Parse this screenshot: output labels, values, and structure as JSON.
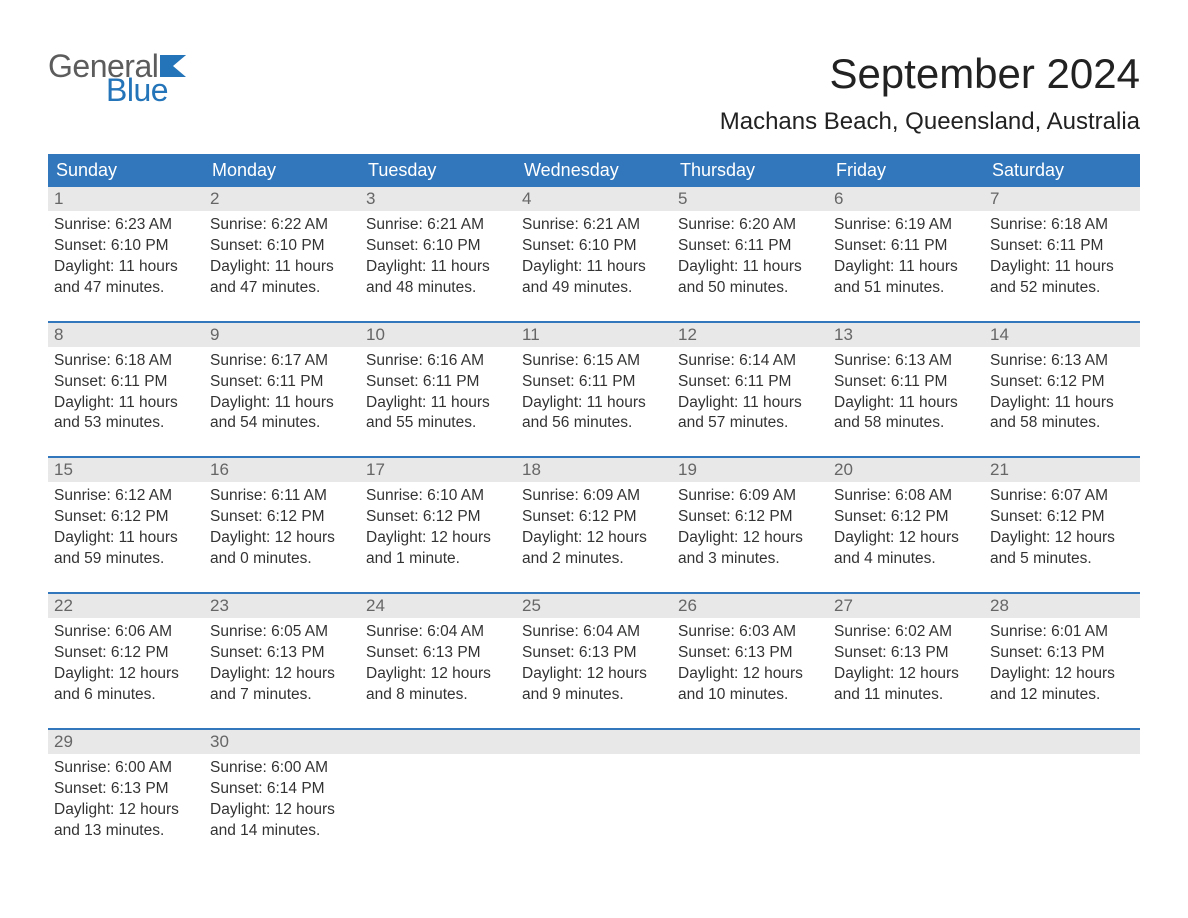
{
  "colors": {
    "header_bg": "#3277bb",
    "header_text": "#ffffff",
    "accent_line": "#3277bb",
    "daynum_bg": "#e8e8e8",
    "daynum_text": "#666666",
    "body_text": "#333333",
    "logo_gray": "#5c5c5c",
    "logo_blue": "#2374b8",
    "background": "#ffffff"
  },
  "typography": {
    "month_title_size_pt": 32,
    "location_size_pt": 18,
    "weekday_size_pt": 14,
    "daynum_size_pt": 13,
    "body_size_pt": 12,
    "font_family": "Arial"
  },
  "logo": {
    "line1": "General",
    "line2": "Blue"
  },
  "title": "September 2024",
  "location": "Machans Beach, Queensland, Australia",
  "weekdays": [
    "Sunday",
    "Monday",
    "Tuesday",
    "Wednesday",
    "Thursday",
    "Friday",
    "Saturday"
  ],
  "weeks": [
    {
      "nums": [
        "1",
        "2",
        "3",
        "4",
        "5",
        "6",
        "7"
      ],
      "cells": [
        {
          "l1": "Sunrise: 6:23 AM",
          "l2": "Sunset: 6:10 PM",
          "l3": "Daylight: 11 hours",
          "l4": "and 47 minutes."
        },
        {
          "l1": "Sunrise: 6:22 AM",
          "l2": "Sunset: 6:10 PM",
          "l3": "Daylight: 11 hours",
          "l4": "and 47 minutes."
        },
        {
          "l1": "Sunrise: 6:21 AM",
          "l2": "Sunset: 6:10 PM",
          "l3": "Daylight: 11 hours",
          "l4": "and 48 minutes."
        },
        {
          "l1": "Sunrise: 6:21 AM",
          "l2": "Sunset: 6:10 PM",
          "l3": "Daylight: 11 hours",
          "l4": "and 49 minutes."
        },
        {
          "l1": "Sunrise: 6:20 AM",
          "l2": "Sunset: 6:11 PM",
          "l3": "Daylight: 11 hours",
          "l4": "and 50 minutes."
        },
        {
          "l1": "Sunrise: 6:19 AM",
          "l2": "Sunset: 6:11 PM",
          "l3": "Daylight: 11 hours",
          "l4": "and 51 minutes."
        },
        {
          "l1": "Sunrise: 6:18 AM",
          "l2": "Sunset: 6:11 PM",
          "l3": "Daylight: 11 hours",
          "l4": "and 52 minutes."
        }
      ]
    },
    {
      "nums": [
        "8",
        "9",
        "10",
        "11",
        "12",
        "13",
        "14"
      ],
      "cells": [
        {
          "l1": "Sunrise: 6:18 AM",
          "l2": "Sunset: 6:11 PM",
          "l3": "Daylight: 11 hours",
          "l4": "and 53 minutes."
        },
        {
          "l1": "Sunrise: 6:17 AM",
          "l2": "Sunset: 6:11 PM",
          "l3": "Daylight: 11 hours",
          "l4": "and 54 minutes."
        },
        {
          "l1": "Sunrise: 6:16 AM",
          "l2": "Sunset: 6:11 PM",
          "l3": "Daylight: 11 hours",
          "l4": "and 55 minutes."
        },
        {
          "l1": "Sunrise: 6:15 AM",
          "l2": "Sunset: 6:11 PM",
          "l3": "Daylight: 11 hours",
          "l4": "and 56 minutes."
        },
        {
          "l1": "Sunrise: 6:14 AM",
          "l2": "Sunset: 6:11 PM",
          "l3": "Daylight: 11 hours",
          "l4": "and 57 minutes."
        },
        {
          "l1": "Sunrise: 6:13 AM",
          "l2": "Sunset: 6:11 PM",
          "l3": "Daylight: 11 hours",
          "l4": "and 58 minutes."
        },
        {
          "l1": "Sunrise: 6:13 AM",
          "l2": "Sunset: 6:12 PM",
          "l3": "Daylight: 11 hours",
          "l4": "and 58 minutes."
        }
      ]
    },
    {
      "nums": [
        "15",
        "16",
        "17",
        "18",
        "19",
        "20",
        "21"
      ],
      "cells": [
        {
          "l1": "Sunrise: 6:12 AM",
          "l2": "Sunset: 6:12 PM",
          "l3": "Daylight: 11 hours",
          "l4": "and 59 minutes."
        },
        {
          "l1": "Sunrise: 6:11 AM",
          "l2": "Sunset: 6:12 PM",
          "l3": "Daylight: 12 hours",
          "l4": "and 0 minutes."
        },
        {
          "l1": "Sunrise: 6:10 AM",
          "l2": "Sunset: 6:12 PM",
          "l3": "Daylight: 12 hours",
          "l4": "and 1 minute."
        },
        {
          "l1": "Sunrise: 6:09 AM",
          "l2": "Sunset: 6:12 PM",
          "l3": "Daylight: 12 hours",
          "l4": "and 2 minutes."
        },
        {
          "l1": "Sunrise: 6:09 AM",
          "l2": "Sunset: 6:12 PM",
          "l3": "Daylight: 12 hours",
          "l4": "and 3 minutes."
        },
        {
          "l1": "Sunrise: 6:08 AM",
          "l2": "Sunset: 6:12 PM",
          "l3": "Daylight: 12 hours",
          "l4": "and 4 minutes."
        },
        {
          "l1": "Sunrise: 6:07 AM",
          "l2": "Sunset: 6:12 PM",
          "l3": "Daylight: 12 hours",
          "l4": "and 5 minutes."
        }
      ]
    },
    {
      "nums": [
        "22",
        "23",
        "24",
        "25",
        "26",
        "27",
        "28"
      ],
      "cells": [
        {
          "l1": "Sunrise: 6:06 AM",
          "l2": "Sunset: 6:12 PM",
          "l3": "Daylight: 12 hours",
          "l4": "and 6 minutes."
        },
        {
          "l1": "Sunrise: 6:05 AM",
          "l2": "Sunset: 6:13 PM",
          "l3": "Daylight: 12 hours",
          "l4": "and 7 minutes."
        },
        {
          "l1": "Sunrise: 6:04 AM",
          "l2": "Sunset: 6:13 PM",
          "l3": "Daylight: 12 hours",
          "l4": "and 8 minutes."
        },
        {
          "l1": "Sunrise: 6:04 AM",
          "l2": "Sunset: 6:13 PM",
          "l3": "Daylight: 12 hours",
          "l4": "and 9 minutes."
        },
        {
          "l1": "Sunrise: 6:03 AM",
          "l2": "Sunset: 6:13 PM",
          "l3": "Daylight: 12 hours",
          "l4": "and 10 minutes."
        },
        {
          "l1": "Sunrise: 6:02 AM",
          "l2": "Sunset: 6:13 PM",
          "l3": "Daylight: 12 hours",
          "l4": "and 11 minutes."
        },
        {
          "l1": "Sunrise: 6:01 AM",
          "l2": "Sunset: 6:13 PM",
          "l3": "Daylight: 12 hours",
          "l4": "and 12 minutes."
        }
      ]
    },
    {
      "nums": [
        "29",
        "30",
        "",
        "",
        "",
        "",
        ""
      ],
      "cells": [
        {
          "l1": "Sunrise: 6:00 AM",
          "l2": "Sunset: 6:13 PM",
          "l3": "Daylight: 12 hours",
          "l4": "and 13 minutes."
        },
        {
          "l1": "Sunrise: 6:00 AM",
          "l2": "Sunset: 6:14 PM",
          "l3": "Daylight: 12 hours",
          "l4": "and 14 minutes."
        },
        {
          "l1": "",
          "l2": "",
          "l3": "",
          "l4": ""
        },
        {
          "l1": "",
          "l2": "",
          "l3": "",
          "l4": ""
        },
        {
          "l1": "",
          "l2": "",
          "l3": "",
          "l4": ""
        },
        {
          "l1": "",
          "l2": "",
          "l3": "",
          "l4": ""
        },
        {
          "l1": "",
          "l2": "",
          "l3": "",
          "l4": ""
        }
      ]
    }
  ]
}
